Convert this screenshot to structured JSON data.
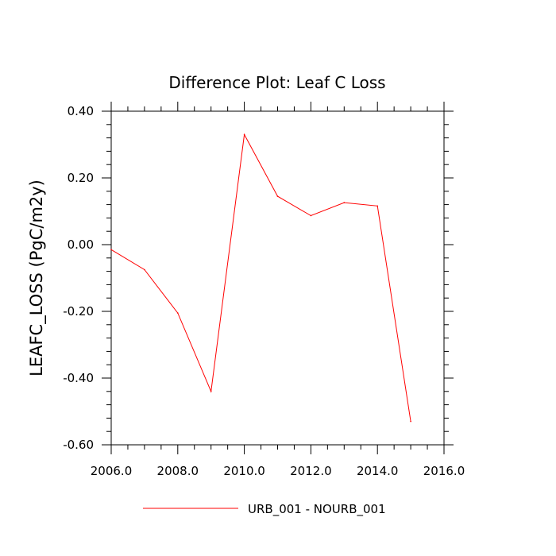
{
  "chart_data": {
    "type": "line",
    "title": "Difference Plot: Leaf C Loss",
    "xlabel": "",
    "ylabel": "LEAFC_LOSS  (PgC/m2y)",
    "xlim": [
      2006,
      2016
    ],
    "ylim": [
      -0.6,
      0.4
    ],
    "x_ticks": [
      2006,
      2008,
      2010,
      2012,
      2014,
      2016
    ],
    "x_tick_labels": [
      "2006.0",
      "2008.0",
      "2010.0",
      "2012.0",
      "2014.0",
      "2016.0"
    ],
    "y_ticks": [
      0.4,
      0.2,
      0.0,
      -0.2,
      -0.4,
      -0.6
    ],
    "y_tick_labels": [
      "0.40",
      "0.20",
      "0.00",
      "-0.20",
      "-0.40",
      "-0.60"
    ],
    "grid": false,
    "legend_position": "bottom-center",
    "series": [
      {
        "name": "URB_001 - NOURB_001",
        "color": "#ff0000",
        "x": [
          2006,
          2007,
          2008,
          2009,
          2010,
          2011,
          2012,
          2013,
          2014,
          2015
        ],
        "y": [
          -0.015,
          -0.075,
          -0.205,
          -0.44,
          0.33,
          0.145,
          0.087,
          0.126,
          0.116,
          -0.53
        ]
      }
    ]
  }
}
